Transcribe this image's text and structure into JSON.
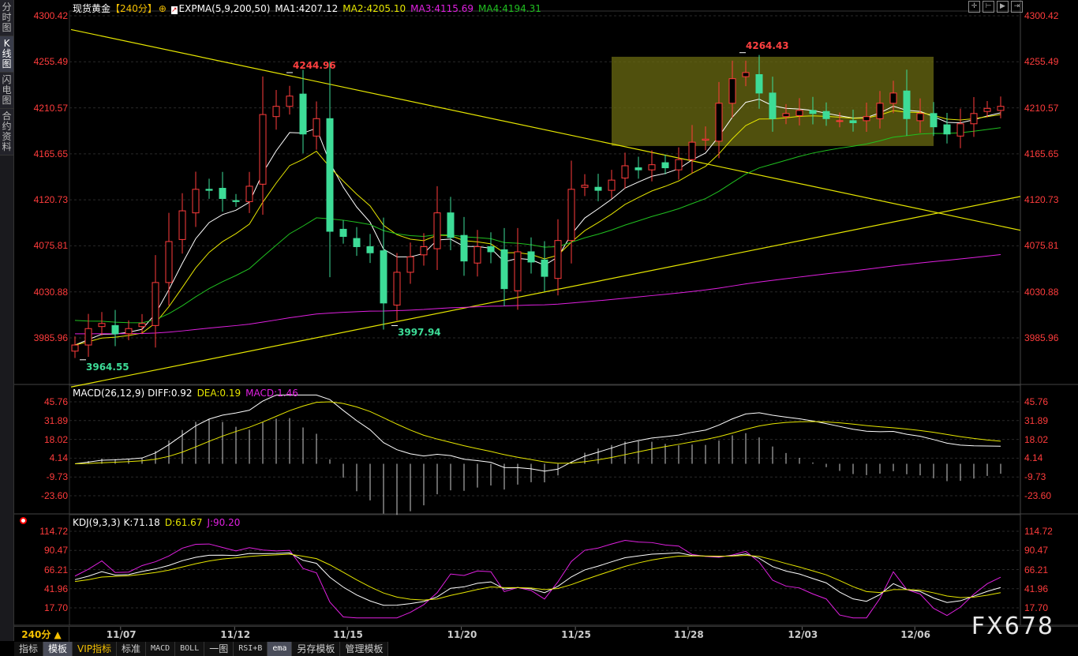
{
  "sidebar": {
    "tabs": [
      {
        "label": "分时图"
      },
      {
        "label": "K线图"
      },
      {
        "label": "闪电图"
      },
      {
        "label": "合约资料"
      }
    ]
  },
  "header": {
    "symbol": "现货黄金",
    "period": "【240分】",
    "indicator": "EXPMA(5,9,200,50)",
    "ma1": "MA1:4207.12",
    "ma2": "MA2:4205.10",
    "ma3": "MA3:4115.69",
    "ma4": "MA4:4194.31"
  },
  "macd_header": {
    "name": "MACD(26,12,9)",
    "diff": "DIFF:0.92",
    "dea": "DEA:0.19",
    "macd": "MACD:1.46"
  },
  "kdj_header": {
    "name": "KDJ(9,3,3)",
    "k": "K:71.18",
    "d": "D:61.67",
    "j": "J:90.20"
  },
  "colors": {
    "up": "#ff3c3c",
    "down": "#3ddc97",
    "ma1": "#ffffff",
    "ma2": "#e6e600",
    "ma3": "#e020e0",
    "ma4": "#20c020",
    "trendline": "#e6e600",
    "box": "#6b6b12"
  },
  "toolbar_icons": [
    "crosshair-icon",
    "zoom-range-icon",
    "play-icon",
    "move-right-icon"
  ],
  "footer": {
    "period": "240分 ▲",
    "tabs": [
      "指标",
      "模板",
      "VIP指标",
      "标准",
      "MACD",
      "BOLL",
      "一图",
      "RSI+B",
      "ema",
      "另存模板",
      "管理模板"
    ],
    "watermark": "FX678"
  },
  "chart_data": [
    {
      "type": "candlestick",
      "title": "现货黄金",
      "price_axis_ticks": [
        "4300.42",
        "4255.49",
        "4210.57",
        "4165.65",
        "4120.73",
        "4075.81",
        "4030.88",
        "3985.96"
      ],
      "ylim": [
        3985.96,
        4300.42
      ],
      "x_tick_labels": [
        "11/07",
        "11/12",
        "11/15",
        "11/20",
        "11/25",
        "11/28",
        "12/03",
        "12/06"
      ],
      "closes": [
        3979,
        3995,
        4000,
        3990,
        3995,
        4000,
        4040,
        4080,
        4110,
        4131,
        4130,
        4122,
        4119,
        4134,
        4204,
        4212,
        4222,
        4185,
        4200,
        4090,
        4085,
        4075,
        4069,
        4020,
        4050,
        4065,
        4075,
        4108,
        4084,
        4061,
        4075,
        4070,
        4034,
        4070,
        4060,
        4046,
        4081,
        4131,
        4135,
        4130,
        4140,
        4154,
        4150,
        4155,
        4152,
        4160,
        4177,
        4180,
        4215,
        4239,
        4245,
        4225,
        4200,
        4205,
        4208,
        4205,
        4200,
        4198,
        4196,
        4202,
        4215,
        4225,
        4200,
        4205,
        4192,
        4185,
        4195,
        4205,
        4210,
        4212
      ],
      "annotations": [
        {
          "label": "4244.96",
          "price": 4244.96
        },
        {
          "label": "4264.43",
          "price": 4264.43
        },
        {
          "label": "3997.94",
          "price": 3997.94
        },
        {
          "label": "3964.55",
          "price": 3964.55
        }
      ],
      "trendlines": [
        {
          "from": 4287,
          "to": 4091
        },
        {
          "from": 3938,
          "to": 4124
        }
      ],
      "range_box": {
        "high": 4260.4,
        "low": 4173.3
      }
    },
    {
      "type": "bar+line",
      "title": "MACD(26,12,9)",
      "axis_ticks": [
        "45.76",
        "31.89",
        "18.02",
        "4.14",
        "-9.73",
        "-23.60"
      ],
      "ylim": [
        -23.6,
        45.76
      ]
    },
    {
      "type": "line",
      "title": "KDJ(9,3,3)",
      "axis_ticks": [
        "114.72",
        "90.47",
        "66.21",
        "41.96",
        "17.70"
      ],
      "ylim": [
        17.7,
        114.72
      ]
    }
  ]
}
